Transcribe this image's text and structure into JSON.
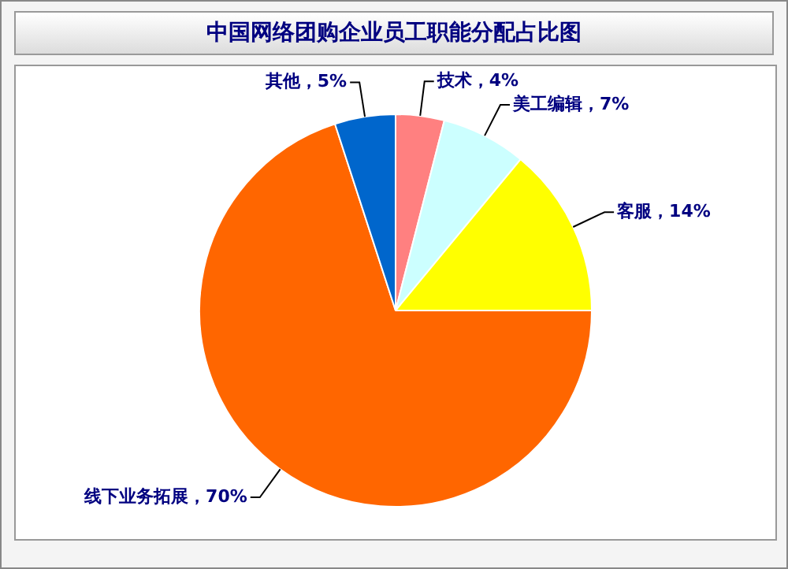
{
  "chart_data": {
    "type": "pie",
    "title": "中国网络团购企业员工职能分配占比图",
    "categories": [
      "技术",
      "美工编辑",
      "客服",
      "线下业务拓展",
      "其他"
    ],
    "values": [
      4,
      7,
      14,
      70,
      5
    ],
    "value_labels": [
      "4%",
      "7%",
      "14%",
      "70%",
      "5%"
    ],
    "colors": [
      "#ff8080",
      "#ccffff",
      "#ffff00",
      "#ff6600",
      "#0066cc"
    ],
    "legend": false
  }
}
